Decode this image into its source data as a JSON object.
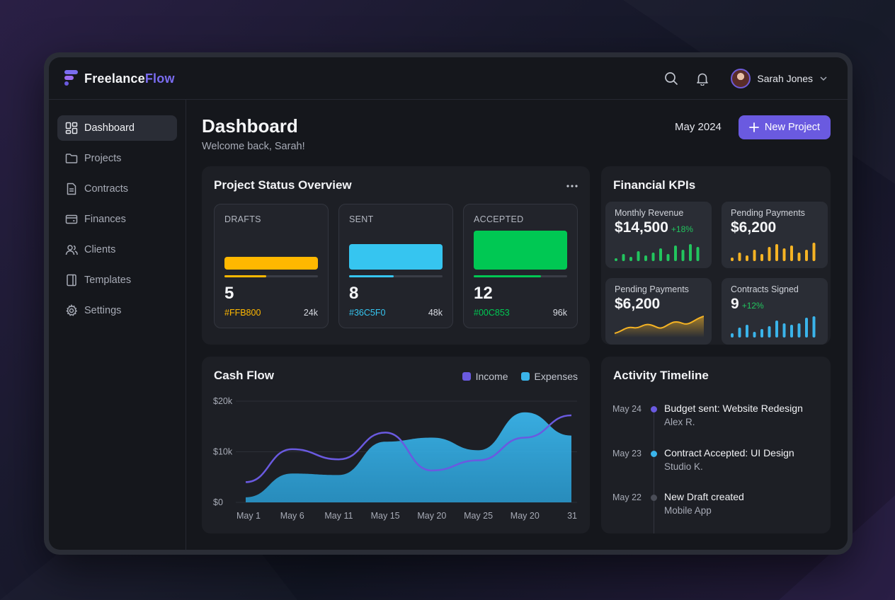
{
  "app": {
    "name_part1": "Freelance",
    "name_part2": "Flow"
  },
  "header": {
    "user_name": "Sarah Jones"
  },
  "sidebar": {
    "items": [
      {
        "label": "Dashboard",
        "icon": "grid-icon",
        "active": true
      },
      {
        "label": "Projects",
        "icon": "folder-icon"
      },
      {
        "label": "Contracts",
        "icon": "document-icon"
      },
      {
        "label": "Finances",
        "icon": "wallet-icon"
      },
      {
        "label": "Clients",
        "icon": "users-icon"
      },
      {
        "label": "Templates",
        "icon": "template-icon"
      },
      {
        "label": "Settings",
        "icon": "gear-icon"
      }
    ]
  },
  "page": {
    "title": "Dashboard",
    "subtitle": "Welcome back, Sarah!",
    "period": "May 2024",
    "new_project_label": "New Project"
  },
  "project_status": {
    "title": "Project Status Overview",
    "items": [
      {
        "label": "DRAFTS",
        "count": "5",
        "hex": "#FFB800",
        "amount": "24k",
        "color": "#FFB800",
        "progress": 0.45
      },
      {
        "label": "SENT",
        "count": "8",
        "hex": "#36C5F0",
        "amount": "48k",
        "color": "#36C5F0",
        "progress": 0.48
      },
      {
        "label": "ACCEPTED",
        "count": "12",
        "hex": "#00C853",
        "amount": "96k",
        "color": "#00C853",
        "progress": 0.72
      }
    ]
  },
  "kpis": {
    "title": "Financial KPIs",
    "items": [
      {
        "label": "Monthly Revenue",
        "value": "$14,500",
        "delta": "+18%",
        "color": "#22c55e",
        "spark": "bars"
      },
      {
        "label": "Pending Payments",
        "value": "$6,200",
        "delta": "",
        "color": "#f5b324",
        "spark": "bars"
      },
      {
        "label": "Pending Payments",
        "value": "$6,200",
        "delta": "",
        "color": "#f5b324",
        "spark": "area"
      },
      {
        "label": "Contracts Signed",
        "value": "9",
        "delta": "+12%",
        "color": "#3ab4ea",
        "spark": "bars"
      }
    ]
  },
  "cash_flow": {
    "title": "Cash Flow",
    "legend": {
      "income": "Income",
      "expenses": "Expenses"
    },
    "colors": {
      "income": "#6a5ae0",
      "expenses": "#3ab4ea"
    }
  },
  "chart_data": {
    "type": "area",
    "categories": [
      "May 1",
      "May 6",
      "May 11",
      "May 15",
      "May 20",
      "May 25",
      "May 20",
      "31"
    ],
    "y_ticks": [
      "$20k",
      "$10k",
      "$0"
    ],
    "ylim": [
      0,
      20000
    ],
    "series": [
      {
        "name": "Income",
        "type": "line",
        "values": [
          4000,
          10500,
          8500,
          13800,
          6300,
          8300,
          12800,
          17200
        ]
      },
      {
        "name": "Expenses",
        "type": "area",
        "values": [
          1000,
          5700,
          5400,
          12000,
          12800,
          10300,
          17800,
          13200
        ]
      }
    ]
  },
  "activity": {
    "title": "Activity Timeline",
    "items": [
      {
        "date": "May 24",
        "title": "Budget sent: Website Redesign",
        "sub": "Alex R.",
        "color": "#6a5ae0"
      },
      {
        "date": "May 23",
        "title": "Contract Accepted: UI Design",
        "sub": "Studio K.",
        "color": "#3ab4ea"
      },
      {
        "date": "May 22",
        "title": "New Draft created",
        "sub": "Mobile App",
        "color": "#4a4d57"
      }
    ]
  }
}
